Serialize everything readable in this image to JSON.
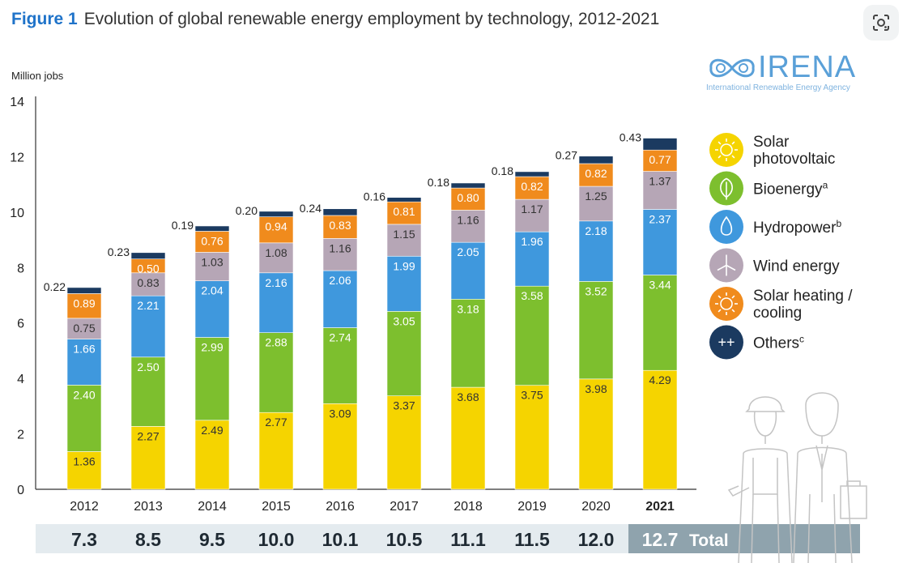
{
  "figure": {
    "label": "Figure 1",
    "title": "Evolution of global renewable energy employment by technology, 2012-2021"
  },
  "logo": {
    "name": "IRENA",
    "subtitle": "International Renewable Energy Agency"
  },
  "lens_icon": "google-lens-icon",
  "chart_data": {
    "type": "bar",
    "stacked": true,
    "ylabel": "Million jobs",
    "xlabel": "",
    "ylim": [
      0,
      14
    ],
    "yticks": [
      0,
      2,
      4,
      6,
      8,
      10,
      12,
      14
    ],
    "grid": false,
    "legend_position": "right",
    "categories": [
      "2012",
      "2013",
      "2014",
      "2015",
      "2016",
      "2017",
      "2018",
      "2019",
      "2020",
      "2021"
    ],
    "series": [
      {
        "name": "Solar photovoltaic",
        "sup": "",
        "icon": "sun-icon",
        "color": "#f5d400",
        "values": [
          1.36,
          2.27,
          2.49,
          2.77,
          3.09,
          3.37,
          3.68,
          3.75,
          3.98,
          4.29
        ]
      },
      {
        "name": "Bioenergy",
        "sup": "a",
        "icon": "leaf-icon",
        "color": "#7dbf2e",
        "values": [
          2.4,
          2.5,
          2.99,
          2.88,
          2.74,
          3.05,
          3.18,
          3.58,
          3.52,
          3.44
        ]
      },
      {
        "name": "Hydropower",
        "sup": "b",
        "icon": "water-drop-icon",
        "color": "#3f98dd",
        "values": [
          1.66,
          2.21,
          2.04,
          2.16,
          2.06,
          1.99,
          2.05,
          1.96,
          2.18,
          2.37
        ]
      },
      {
        "name": "Wind energy",
        "sup": "",
        "icon": "wind-turbine-icon",
        "color": "#b6a6b6",
        "values": [
          0.75,
          0.83,
          1.03,
          1.08,
          1.16,
          1.15,
          1.16,
          1.17,
          1.25,
          1.37
        ]
      },
      {
        "name": "Solar heating / cooling",
        "sup": "",
        "icon": "sun-heat-icon",
        "color": "#f08b1d",
        "values": [
          0.89,
          0.5,
          0.76,
          0.94,
          0.83,
          0.81,
          0.8,
          0.82,
          0.82,
          0.77
        ]
      },
      {
        "name": "Others",
        "sup": "c",
        "icon": "plus-plus-icon",
        "color": "#1b3a60",
        "values": [
          0.22,
          0.23,
          0.19,
          0.2,
          0.24,
          0.16,
          0.18,
          0.18,
          0.27,
          0.43
        ]
      }
    ],
    "bar_labels": [
      [
        "1.36",
        "2.27",
        "2.49",
        "2.77",
        "3.09",
        "3.37",
        "3.68",
        "3.75",
        "3.98",
        "4.29"
      ],
      [
        "2.40",
        "2.50",
        "2.99",
        "2.88",
        "2.74",
        "3.05",
        "3.18",
        "3.58",
        "3.52",
        "3.44"
      ],
      [
        "1.66",
        "2.21",
        "2.04",
        "2.16",
        "2.06",
        "1.99",
        "2.05",
        "1.96",
        "2.18",
        "2.37"
      ],
      [
        "0.75",
        "0.83",
        "1.03",
        "1.08",
        "1.16",
        "1.15",
        "1.16",
        "1.17",
        "1.25",
        "1.37"
      ],
      [
        "0.89",
        "0.50",
        "0.76",
        "0.94",
        "0.83",
        "0.81",
        "0.80",
        "0.82",
        "0.82",
        "0.77"
      ],
      [
        "0.22",
        "0.23",
        "0.19",
        "0.20",
        "0.24",
        "0.16",
        "0.18",
        "0.18",
        "0.27",
        "0.43"
      ]
    ],
    "totals": [
      "7.3",
      "8.5",
      "9.5",
      "10.0",
      "10.1",
      "10.5",
      "11.1",
      "11.5",
      "12.0",
      "12.7"
    ],
    "totals_label": "Total",
    "highlight_category": "2021",
    "decoration": "workers-illustration"
  }
}
